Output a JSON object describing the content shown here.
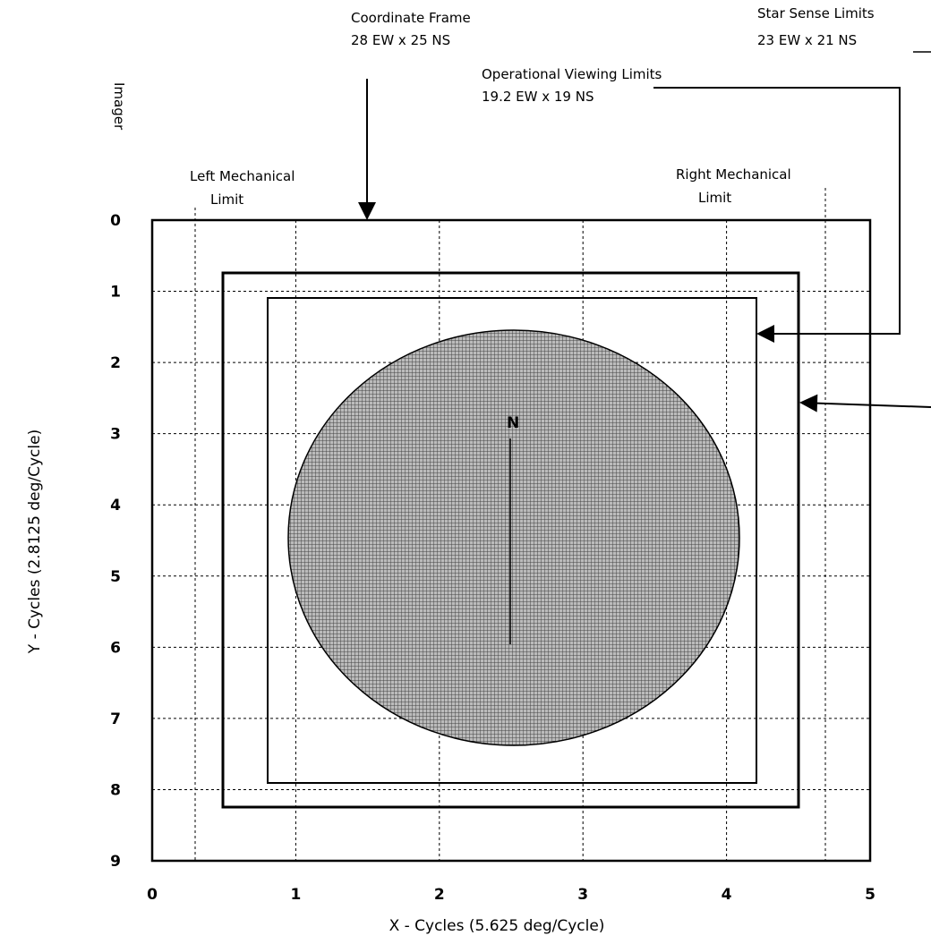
{
  "title_labels": {
    "coordinate_frame": "Coordinate Frame",
    "coordinate_frame_size": "28 EW x 25 NS",
    "star_sense": "Star Sense Limits",
    "star_sense_size": "23 EW x 21 NS",
    "operational": "Operational Viewing Limits",
    "operational_size": "19.2 EW x 19 NS",
    "instrument": "Imager",
    "left_mech_1": "Left Mechanical",
    "left_mech_2": "Limit",
    "right_mech_1": "Right Mechanical",
    "right_mech_2": "Limit",
    "north": "N"
  },
  "axes": {
    "x_title": "X - Cycles (5.625 deg/Cycle)",
    "y_title": "Y - Cycles (2.8125 deg/Cycle)",
    "x_ticks": [
      "0",
      "1",
      "2",
      "3",
      "4",
      "5"
    ],
    "y_ticks": [
      "0",
      "1",
      "2",
      "3",
      "4",
      "5",
      "6",
      "7",
      "8",
      "9"
    ]
  }
}
